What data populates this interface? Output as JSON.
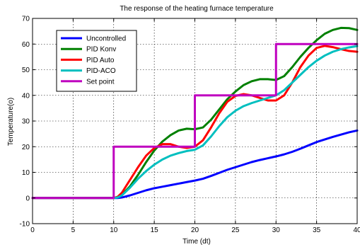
{
  "chart_data": {
    "type": "line",
    "title": "The response of the heating furnace temperature",
    "xlabel": "Time (dt)",
    "ylabel": "Temperature(o)",
    "xlim": [
      0,
      40
    ],
    "ylim": [
      -10,
      70
    ],
    "xticks": [
      0,
      5,
      10,
      15,
      20,
      25,
      30,
      35,
      40
    ],
    "yticks": [
      -10,
      0,
      10,
      20,
      30,
      40,
      50,
      60,
      70
    ],
    "grid": true,
    "legend_position": "top-left",
    "series": [
      {
        "name": "Uncontrolled",
        "color": "#0000ff",
        "x": [
          0,
          10,
          10.5,
          11,
          12,
          13,
          14,
          15,
          16,
          17,
          18,
          19,
          20,
          21,
          22,
          23,
          24,
          25,
          26,
          27,
          28,
          29,
          30,
          31,
          32,
          33,
          34,
          35,
          36,
          37,
          38,
          39,
          40
        ],
        "y": [
          0,
          0,
          0,
          0.2,
          1,
          2,
          3,
          3.8,
          4.4,
          5,
          5.6,
          6.2,
          6.8,
          7.5,
          8.6,
          9.8,
          11,
          12,
          13,
          14,
          14.8,
          15.5,
          16.2,
          17,
          18,
          19.2,
          20.5,
          21.8,
          22.8,
          23.8,
          24.7,
          25.6,
          26.3
        ]
      },
      {
        "name": "PID Konv",
        "color": "#008000",
        "x": [
          0,
          10,
          10.5,
          11,
          12,
          13,
          14,
          15,
          16,
          17,
          18,
          19,
          20,
          21,
          22,
          23,
          24,
          25,
          26,
          27,
          28,
          29,
          30,
          31,
          32,
          33,
          34,
          35,
          36,
          37,
          38,
          39,
          40
        ],
        "y": [
          0,
          0,
          0.3,
          1.2,
          4.5,
          9,
          14,
          18.5,
          22,
          24.5,
          26.3,
          27,
          26.8,
          27.5,
          30.5,
          34.5,
          38.5,
          41.5,
          44,
          45.5,
          46.3,
          46.3,
          46,
          47.5,
          51,
          55,
          58.5,
          61.5,
          64,
          65.5,
          66.3,
          66.2,
          65.5
        ]
      },
      {
        "name": "PID Auto",
        "color": "#ff0000",
        "x": [
          0,
          10,
          10.5,
          11,
          12,
          13,
          14,
          15,
          16,
          17,
          18,
          19,
          20,
          21,
          22,
          23,
          24,
          25,
          26,
          27,
          28,
          29,
          30,
          31,
          32,
          33,
          34,
          35,
          36,
          37,
          38,
          39,
          40
        ],
        "y": [
          0,
          0,
          0.5,
          2,
          7,
          12,
          16.5,
          19.5,
          21,
          21,
          20,
          19.5,
          20,
          22.5,
          27.5,
          33,
          37.5,
          39.8,
          40.5,
          40,
          39,
          38,
          38,
          40,
          45,
          51,
          55.5,
          58.5,
          59.3,
          58.8,
          58,
          57.3,
          57
        ]
      },
      {
        "name": "PID-ACO",
        "color": "#00bfbf",
        "x": [
          0,
          10,
          10.5,
          11,
          12,
          13,
          14,
          15,
          16,
          17,
          18,
          19,
          20,
          21,
          22,
          23,
          24,
          25,
          26,
          27,
          28,
          29,
          30,
          31,
          32,
          33,
          34,
          35,
          36,
          37,
          38,
          39,
          40
        ],
        "y": [
          0,
          0,
          0.2,
          1,
          4,
          7.5,
          10.5,
          13,
          15,
          16.5,
          17.5,
          18.3,
          18.8,
          20.5,
          24,
          28,
          31.5,
          34,
          35.8,
          37,
          38,
          39,
          40,
          42,
          45,
          48,
          51,
          53.5,
          55.5,
          57,
          58,
          58.7,
          59.2
        ]
      },
      {
        "name": "Set point",
        "color": "#bf00bf",
        "x": [
          0,
          10,
          10,
          20,
          20,
          30,
          30,
          40
        ],
        "y": [
          0,
          0,
          20,
          20,
          40,
          40,
          60,
          60
        ]
      }
    ]
  }
}
